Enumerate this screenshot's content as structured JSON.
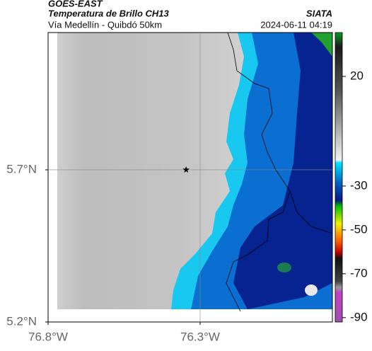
{
  "header": {
    "satellite": "GOES-EAST",
    "title": "Temperatura de Brillo CH13",
    "source": "SIATA",
    "subtitle": "Vía Medellín - Quibdó 50km",
    "datetime": "2024-06-11 04:19"
  },
  "map": {
    "xlim": [
      -76.8,
      -75.865
    ],
    "ylim": [
      5.2,
      6.151
    ],
    "xticks": [
      {
        "value": -76.8,
        "label": "76.8°W"
      },
      {
        "value": -76.3,
        "label": "76.3°W"
      }
    ],
    "yticks": [
      {
        "value": 5.2,
        "label": "5.2°N"
      },
      {
        "value": 5.7,
        "label": "5.7°N"
      }
    ],
    "grid_lon": -76.3,
    "grid_lat": 5.7,
    "marker": {
      "lon": -76.346,
      "lat": 5.7
    }
  },
  "colorbar": {
    "clim": [
      -92,
      40
    ],
    "ticks": [
      20,
      -30,
      -50,
      -70,
      -90
    ]
  }
}
